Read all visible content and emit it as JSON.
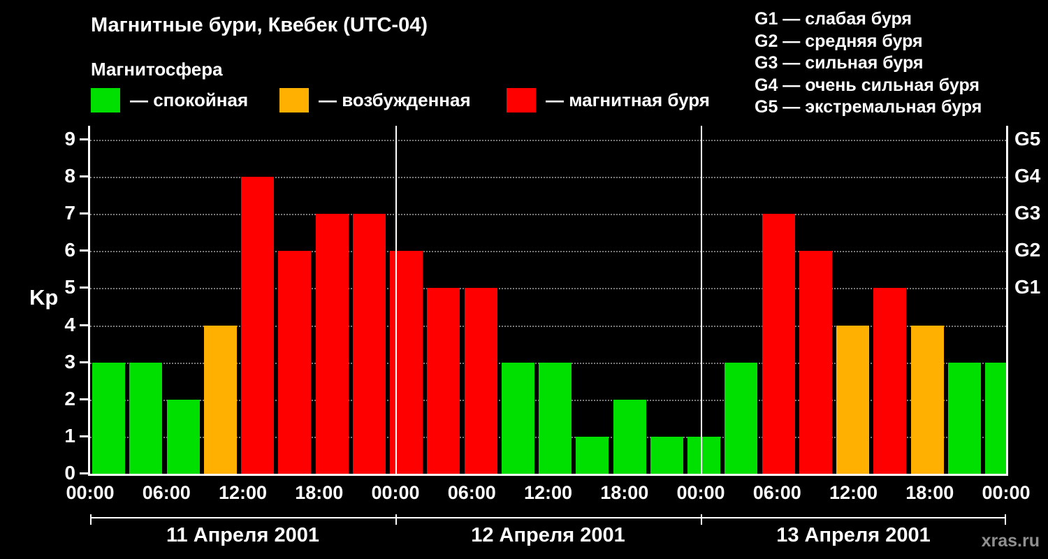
{
  "header": {
    "title": "Магнитные бури, Квебек (UTC-04)",
    "subtitle": "Магнитосфера",
    "legend": [
      {
        "key": "quiet",
        "label": "— спокойная",
        "color": "#00e000"
      },
      {
        "key": "unsettled",
        "label": "— возбужденная",
        "color": "#ffb000"
      },
      {
        "key": "storm",
        "label": "— магнитная буря",
        "color": "#ff0000"
      }
    ],
    "storm_scale": [
      "G1 — слабая буря",
      "G2 — средняя буря",
      "G3 — сильная буря",
      "G4 — очень сильная буря",
      "G5 — экстремальная буря"
    ]
  },
  "watermark": "xras.ru",
  "chart_data": {
    "type": "bar",
    "title": "Магнитные бури, Квебек (UTC-04)",
    "ylabel": "Kp",
    "ylim": [
      0,
      9
    ],
    "yticks": [
      0,
      1,
      2,
      3,
      4,
      5,
      6,
      7,
      8,
      9
    ],
    "grid": "dotted horizontal, solid white vertical day separators",
    "x_time_ticks": [
      "00:00",
      "06:00",
      "12:00",
      "18:00",
      "00:00",
      "06:00",
      "12:00",
      "18:00",
      "00:00",
      "06:00",
      "12:00",
      "18:00",
      "00:00"
    ],
    "days": [
      {
        "date": "11 Апреля 2001",
        "kp_values": [
          3,
          3,
          2,
          4,
          8,
          6,
          7,
          7
        ]
      },
      {
        "date": "12 Апреля 2001",
        "kp_values": [
          6,
          5,
          5,
          3,
          3,
          1,
          2,
          1
        ]
      },
      {
        "date": "13 Апреля 2001",
        "kp_values": [
          1,
          3,
          7,
          6,
          4,
          5,
          4,
          3
        ]
      }
    ],
    "partial_next_bar": 3,
    "right_axis_labels": [
      {
        "kp": 5,
        "label": "G1"
      },
      {
        "kp": 6,
        "label": "G2"
      },
      {
        "kp": 7,
        "label": "G3"
      },
      {
        "kp": 8,
        "label": "G4"
      },
      {
        "kp": 9,
        "label": "G5"
      }
    ],
    "color_rules": {
      "quiet_max": 3,
      "unsettled_max": 4
    },
    "colors": {
      "quiet": "#00e000",
      "unsettled": "#ffb000",
      "storm": "#ff0000"
    }
  }
}
